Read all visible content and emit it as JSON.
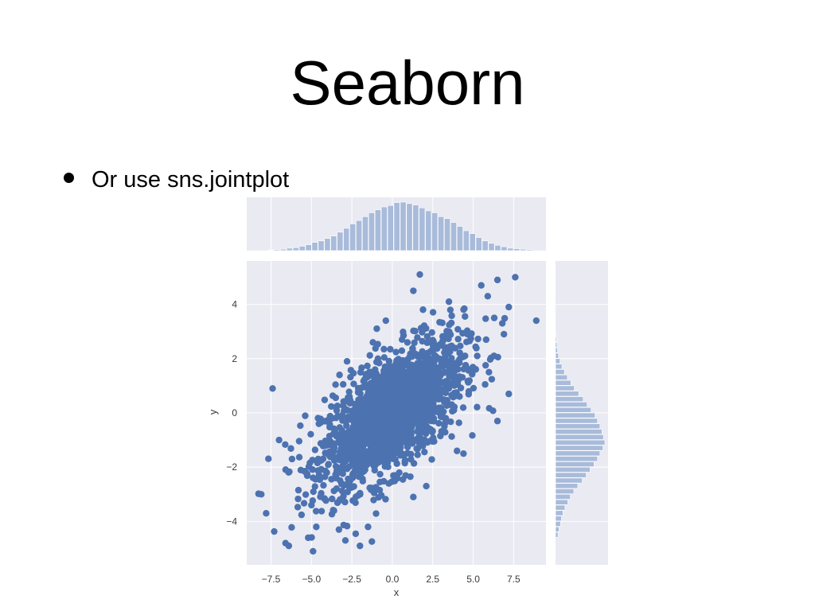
{
  "slide": {
    "title": "Seaborn",
    "bullet": "Or use sns.jointplot"
  },
  "chart_data": {
    "type": "scatter",
    "subtype": "jointplot",
    "xlabel": "x",
    "ylabel": "y",
    "xlim": [
      -9,
      9.5
    ],
    "ylim": [
      -5.6,
      5.6
    ],
    "xticks": [
      -7.5,
      -5.0,
      -2.5,
      0.0,
      2.5,
      5.0,
      7.5
    ],
    "xtick_labels": [
      "−7.5",
      "−5.0",
      "−2.5",
      "0.0",
      "2.5",
      "5.0",
      "7.5"
    ],
    "yticks": [
      -4,
      -2,
      0,
      2,
      4
    ],
    "ytick_labels": [
      "−4",
      "−2",
      "0",
      "2",
      "4"
    ],
    "grid": true,
    "background_color": "#eaeaf2",
    "point_color": "#4c72b0",
    "hist_color": "#a9bbda",
    "points": [
      [
        1.7,
        5.1
      ],
      [
        7.6,
        5.0
      ],
      [
        6.5,
        4.9
      ],
      [
        5.5,
        4.7
      ],
      [
        1.3,
        4.5
      ],
      [
        5.9,
        4.3
      ],
      [
        7.2,
        3.9
      ],
      [
        8.9,
        3.4
      ],
      [
        6.3,
        3.5
      ],
      [
        -7.4,
        0.9
      ],
      [
        -8.1,
        -3.0
      ],
      [
        -7.8,
        -3.7
      ],
      [
        -7.0,
        -1.0
      ],
      [
        -6.2,
        -1.7
      ],
      [
        -5.2,
        -4.6
      ],
      [
        -4.9,
        -5.1
      ],
      [
        -6.6,
        -4.8
      ],
      [
        -6.4,
        -4.9
      ],
      [
        -2.0,
        -4.9
      ],
      [
        -2.9,
        -4.7
      ],
      [
        -5.0,
        -3.4
      ],
      [
        7.2,
        0.7
      ],
      [
        6.5,
        -0.3
      ],
      [
        4.0,
        -1.4
      ],
      [
        4.4,
        -1.5
      ],
      [
        2.1,
        -2.7
      ],
      [
        1.3,
        -3.1
      ],
      [
        -1.5,
        -4.2
      ],
      [
        5.8,
        2.7
      ],
      [
        6.9,
        2.9
      ],
      [
        3.5,
        4.1
      ],
      [
        -4.7,
        -4.2
      ],
      [
        -3.3,
        -4.3
      ],
      [
        -0.4,
        3.4
      ],
      [
        -1.2,
        2.6
      ],
      [
        -2.8,
        1.9
      ],
      [
        6.8,
        3.3
      ]
    ],
    "cluster": {
      "mean": [
        0.0,
        0.0
      ],
      "std": [
        2.2,
        1.35
      ],
      "correlation": 0.62
    },
    "marginal_x": {
      "bin_start": -7.7,
      "bin_width": 0.39,
      "counts": [
        0.01,
        0.02,
        0.03,
        0.05,
        0.06,
        0.09,
        0.12,
        0.17,
        0.2,
        0.25,
        0.3,
        0.38,
        0.46,
        0.55,
        0.62,
        0.7,
        0.78,
        0.84,
        0.9,
        0.93,
        0.99,
        1.0,
        0.97,
        0.94,
        0.88,
        0.82,
        0.78,
        0.7,
        0.66,
        0.58,
        0.5,
        0.41,
        0.35,
        0.27,
        0.2,
        0.15,
        0.11,
        0.08,
        0.05,
        0.04,
        0.03,
        0.02
      ]
    },
    "marginal_y": {
      "bin_start": -4.6,
      "bin_width": 0.2,
      "counts": [
        0.05,
        0.07,
        0.1,
        0.12,
        0.15,
        0.19,
        0.25,
        0.3,
        0.37,
        0.45,
        0.54,
        0.62,
        0.7,
        0.78,
        0.85,
        0.9,
        0.96,
        1.0,
        0.97,
        0.94,
        0.9,
        0.85,
        0.8,
        0.72,
        0.64,
        0.56,
        0.47,
        0.38,
        0.31,
        0.24,
        0.18,
        0.13,
        0.09,
        0.06,
        0.04,
        0.03,
        0.02,
        0.01
      ]
    }
  }
}
